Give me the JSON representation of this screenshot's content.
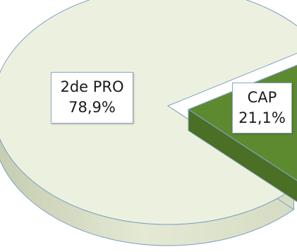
{
  "chart_data": {
    "type": "pie",
    "style": "3d",
    "categories": [
      "2de PRO",
      "CAP"
    ],
    "values": [
      78.9,
      21.1
    ],
    "value_labels": [
      "78,9%",
      "21,1%"
    ],
    "colors": {
      "2de PRO": "#ecf1df",
      "CAP": "#5e8a2f",
      "outline": "#7f9fc4",
      "label_border": "#8ea9c8"
    },
    "exploded": "CAP",
    "legend": "none"
  }
}
